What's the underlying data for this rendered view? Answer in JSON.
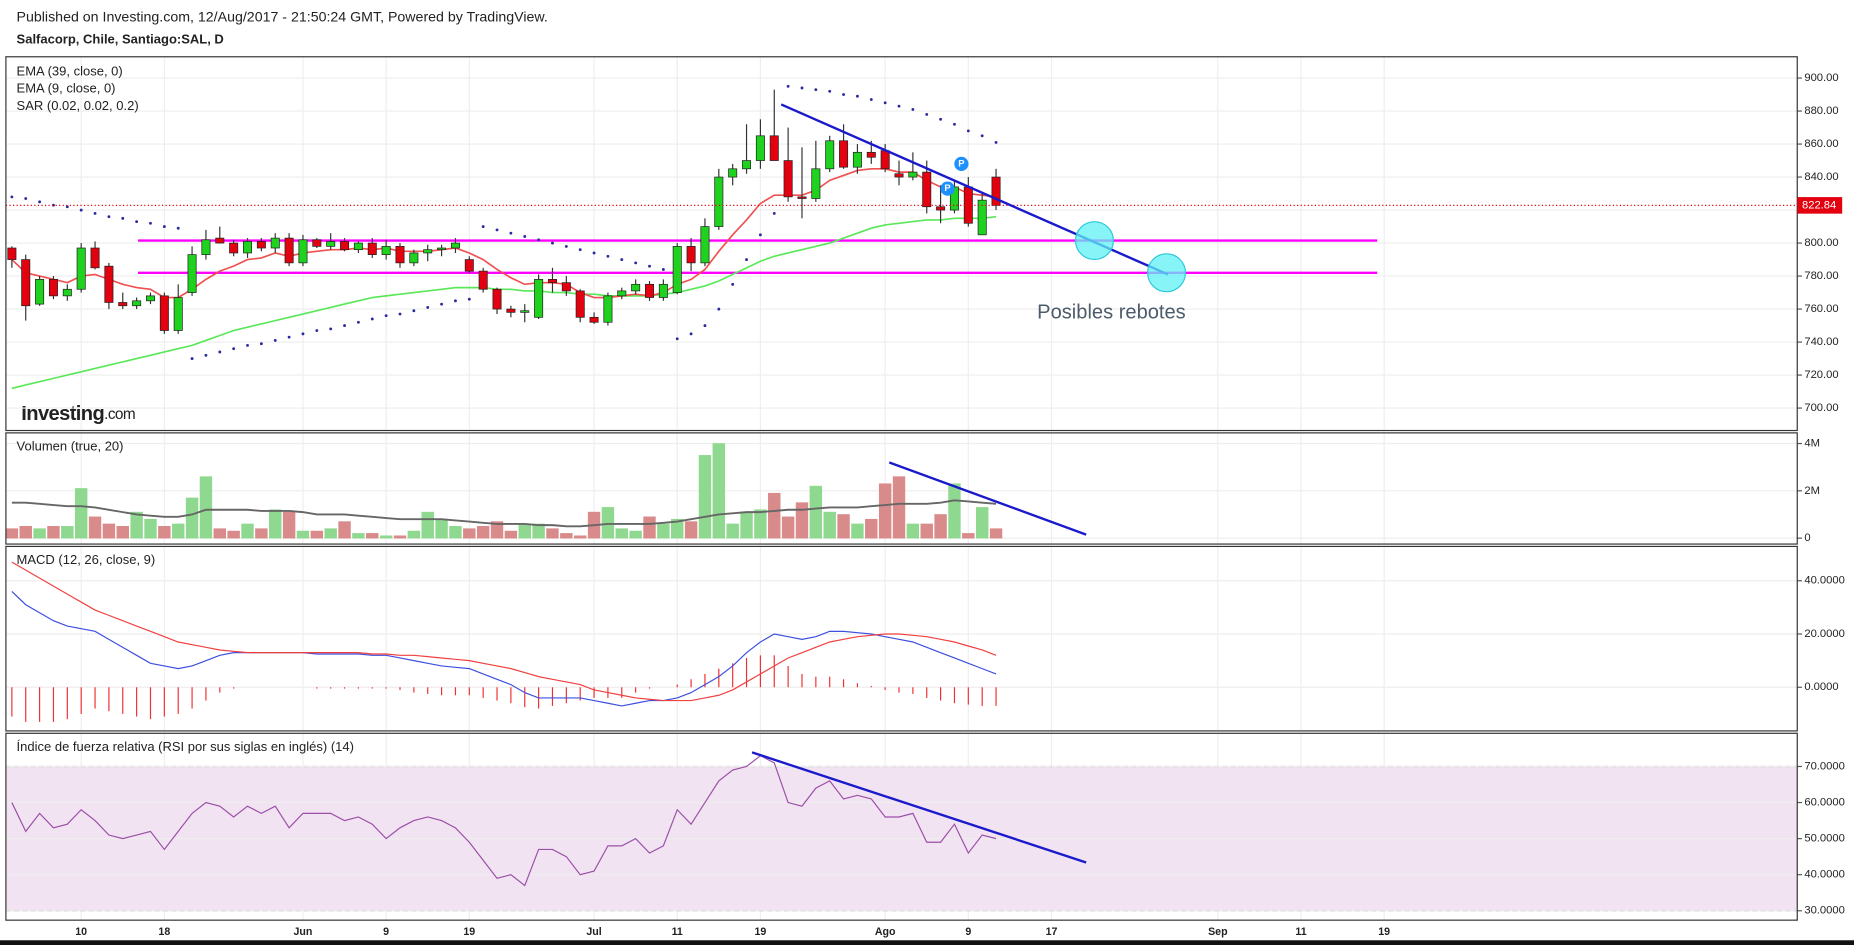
{
  "header": {
    "published": "Published on Investing.com, 12/Aug/2017 - 21:50:24 GMT, Powered by TradingView.",
    "symbol": "Salfacorp, Chile, Santiago:SAL, D",
    "logo": [
      "Investing",
      ".com"
    ]
  },
  "x_axis": {
    "xlim": [
      -0.43,
      128.8
    ],
    "xticks": [
      {
        "value": 5,
        "label": "10"
      },
      {
        "value": 11,
        "label": "18"
      },
      {
        "value": 21,
        "label": "Jun"
      },
      {
        "value": 27,
        "label": "9"
      },
      {
        "value": 33,
        "label": "19"
      },
      {
        "value": 42,
        "label": "Jul"
      },
      {
        "value": 48,
        "label": "11"
      },
      {
        "value": 54,
        "label": "19"
      },
      {
        "value": 63,
        "label": "Ago"
      },
      {
        "value": 69,
        "label": "9"
      },
      {
        "value": 75,
        "label": "17"
      },
      {
        "value": 87,
        "label": "Sep"
      },
      {
        "value": 93,
        "label": "11"
      },
      {
        "value": 99,
        "label": "19"
      }
    ]
  },
  "chart_data": [
    {
      "type": "candlestick",
      "up_color": "#1ed21e",
      "down_color": "#e3000f",
      "open": [
        797,
        790,
        763,
        778,
        768,
        772,
        797,
        786,
        764,
        762,
        765,
        768,
        747,
        770,
        793,
        803,
        800,
        794,
        801,
        797,
        803,
        788,
        802,
        798,
        801,
        796,
        800,
        793,
        798,
        788,
        794,
        796,
        797,
        790,
        783,
        772,
        760,
        758,
        755,
        778,
        776,
        771,
        755,
        752,
        768,
        771,
        775,
        767,
        770,
        798,
        788,
        810,
        840,
        845,
        850,
        865,
        850,
        828,
        827,
        845,
        862,
        846,
        855,
        856,
        842,
        840,
        843,
        822,
        820,
        834,
        805,
        840
      ],
      "high": [
        798,
        793,
        780,
        780,
        775,
        800,
        801,
        788,
        770,
        767,
        770,
        770,
        775,
        798,
        808,
        810,
        802,
        803,
        803,
        806,
        806,
        805,
        803,
        806,
        803,
        801,
        803,
        802,
        800,
        796,
        799,
        799,
        803,
        792,
        785,
        773,
        762,
        763,
        781,
        785,
        780,
        772,
        758,
        770,
        773,
        778,
        777,
        778,
        800,
        803,
        815,
        845,
        848,
        872,
        875,
        893,
        870,
        858,
        862,
        865,
        872,
        860,
        862,
        860,
        850,
        855,
        850,
        835,
        838,
        840,
        830,
        845
      ],
      "low": [
        785,
        753,
        762,
        766,
        765,
        770,
        784,
        760,
        760,
        760,
        763,
        745,
        745,
        768,
        790,
        800,
        792,
        791,
        795,
        794,
        786,
        786,
        797,
        796,
        795,
        794,
        791,
        790,
        785,
        786,
        789,
        792,
        794,
        782,
        770,
        757,
        755,
        752,
        754,
        770,
        768,
        752,
        751,
        750,
        766,
        769,
        765,
        765,
        769,
        783,
        786,
        808,
        835,
        842,
        845,
        850,
        825,
        815,
        825,
        843,
        845,
        842,
        848,
        843,
        835,
        838,
        818,
        812,
        818,
        810,
        805,
        820
      ],
      "close": [
        790,
        762,
        778,
        768,
        772,
        797,
        785,
        764,
        762,
        765,
        768,
        747,
        767,
        793,
        802,
        800,
        794,
        801,
        797,
        803,
        788,
        802,
        798,
        801,
        796,
        800,
        793,
        798,
        788,
        794,
        796,
        797,
        800,
        783,
        772,
        760,
        758,
        759,
        778,
        776,
        771,
        755,
        752,
        768,
        771,
        775,
        767,
        775,
        798,
        788,
        810,
        840,
        845,
        850,
        865,
        850,
        828,
        827,
        845,
        862,
        846,
        855,
        852,
        845,
        840,
        843,
        822,
        820,
        834,
        812,
        826,
        822.84
      ],
      "series": [
        {
          "name": "EMA (39, close, 0)",
          "color": "#5ae85a",
          "values": [
            712,
            714,
            716,
            718,
            720,
            722,
            724,
            726,
            728,
            730,
            732,
            734,
            736,
            738,
            741,
            744,
            747,
            749,
            751,
            753,
            755,
            757,
            759,
            761,
            763,
            765,
            767,
            768,
            769,
            770,
            771,
            772,
            773,
            773,
            773,
            772,
            772,
            771,
            771,
            770,
            770,
            769,
            769,
            768,
            768,
            768,
            768,
            769,
            770,
            772,
            774,
            777,
            781,
            785,
            789,
            792,
            794,
            796,
            798,
            800,
            803,
            806,
            809,
            811,
            812,
            813,
            814,
            814,
            815,
            815,
            815,
            816
          ]
        },
        {
          "name": "EMA (9, close, 0)",
          "color": "#f05050",
          "values": [
            790,
            782,
            780,
            778,
            776,
            780,
            781,
            778,
            775,
            773,
            772,
            767,
            767,
            772,
            778,
            783,
            786,
            790,
            791,
            794,
            792,
            794,
            795,
            796,
            796,
            797,
            796,
            797,
            795,
            795,
            795,
            796,
            797,
            794,
            790,
            784,
            779,
            775,
            776,
            776,
            775,
            770,
            767,
            767,
            768,
            769,
            768,
            770,
            775,
            778,
            784,
            795,
            805,
            814,
            824,
            829,
            829,
            829,
            832,
            838,
            841,
            844,
            845,
            845,
            843,
            843,
            838,
            834,
            834,
            830,
            829,
            828
          ]
        },
        {
          "name": "SAR (0.02, 0.02, 0.2)",
          "color": "#2a2aa0",
          "style": "dots",
          "values": [
            828,
            827,
            825,
            823,
            822,
            820,
            818,
            816,
            815,
            813,
            812,
            810,
            809,
            730,
            732,
            734,
            736,
            738,
            739,
            741,
            743,
            745,
            747,
            748,
            750,
            752,
            754,
            756,
            757,
            759,
            761,
            763,
            765,
            766,
            810,
            808,
            806,
            804,
            802,
            800,
            798,
            796,
            794,
            792,
            790,
            788,
            786,
            784,
            742,
            745,
            750,
            760,
            775,
            790,
            805,
            818,
            895,
            894,
            893,
            892,
            890,
            889,
            887,
            885,
            883,
            881,
            878,
            875,
            872,
            868,
            865,
            861
          ]
        }
      ],
      "ylim": [
        686.4,
        912.9
      ],
      "yticks": [
        {
          "value": 700,
          "label": "700.00"
        },
        {
          "value": 720,
          "label": "720.00"
        },
        {
          "value": 740,
          "label": "740.00"
        },
        {
          "value": 760,
          "label": "760.00"
        },
        {
          "value": 780,
          "label": "780.00"
        },
        {
          "value": 800,
          "label": "800.00"
        },
        {
          "value": 820,
          "label": "820.00"
        },
        {
          "value": 840,
          "label": "840.00"
        },
        {
          "value": 860,
          "label": "860.00"
        },
        {
          "value": 880,
          "label": "880.00"
        },
        {
          "value": 900,
          "label": "900.00"
        }
      ],
      "last_price": 822.84,
      "last_price_color": "#e3000f",
      "hlines": [
        {
          "value": 801.5,
          "x": [
            9.1,
            98.5
          ],
          "color": "#ff00ff"
        },
        {
          "value": 782,
          "x": [
            9.1,
            98.5
          ],
          "color": "#ff00ff"
        }
      ],
      "trendlines": [
        {
          "x": [
            55.5,
            83.4
          ],
          "y": [
            884,
            781
          ],
          "color": "#1a1acc"
        }
      ],
      "circles": [
        {
          "x": 78.1,
          "y": 801.5
        },
        {
          "x": 83.3,
          "y": 782
        }
      ],
      "events": [
        {
          "label": "P",
          "x": 68.5,
          "y": 848
        },
        {
          "label": "P",
          "x": 67.5,
          "y": 833
        }
      ],
      "annotation": "Posibles rebotes"
    },
    {
      "type": "bar",
      "title": "Volumen (true, 20)",
      "up_color": "#8fd88f",
      "down_color": "#d98a8a",
      "values": [
        400000,
        500000,
        400000,
        500000,
        500000,
        2100000,
        900000,
        600000,
        500000,
        1100000,
        800000,
        500000,
        600000,
        1700000,
        2600000,
        400000,
        300000,
        600000,
        400000,
        1200000,
        1100000,
        300000,
        300000,
        400000,
        700000,
        200000,
        200000,
        100000,
        100000,
        300000,
        1100000,
        800000,
        500000,
        400000,
        500000,
        700000,
        300000,
        600000,
        600000,
        400000,
        200000,
        100000,
        1100000,
        1300000,
        400000,
        300000,
        900000,
        600000,
        800000,
        700000,
        3500000,
        4000000,
        600000,
        1100000,
        1200000,
        1900000,
        900000,
        1500000,
        2200000,
        1100000,
        1000000,
        600000,
        800000,
        2300000,
        2600000,
        600000,
        600000,
        1000000,
        2300000,
        200000,
        1300000,
        400000
      ],
      "ma": [
        1500000,
        1500000,
        1450000,
        1400000,
        1350000,
        1350000,
        1300000,
        1200000,
        1100000,
        1000000,
        950000,
        900000,
        900000,
        1000000,
        1200000,
        1200000,
        1200000,
        1200000,
        1150000,
        1150000,
        1150000,
        1100000,
        1000000,
        1000000,
        1000000,
        950000,
        900000,
        850000,
        800000,
        800000,
        800000,
        800000,
        750000,
        700000,
        650000,
        600000,
        600000,
        600000,
        550000,
        550000,
        500000,
        500000,
        550000,
        600000,
        600000,
        600000,
        600000,
        650000,
        700000,
        800000,
        900000,
        1000000,
        1050000,
        1100000,
        1100000,
        1150000,
        1200000,
        1200000,
        1250000,
        1300000,
        1300000,
        1300000,
        1350000,
        1400000,
        1450000,
        1450000,
        1450000,
        1500000,
        1600000,
        1550000,
        1500000,
        1450000
      ],
      "ma_color": "#666666",
      "ylim": [
        -250000,
        4450000
      ],
      "yticks": [
        0,
        {
          "value": 2000000,
          "label": "2M"
        },
        {
          "value": 4000000,
          "label": "4M"
        }
      ],
      "trendlines": [
        {
          "x": [
            63.3,
            77.5
          ],
          "y": [
            3200000,
            150000
          ],
          "color": "#1a1acc"
        }
      ]
    },
    {
      "type": "line",
      "title": "MACD (12, 26, close, 9)",
      "series": [
        {
          "color": "#3d4fe0",
          "values": [
            36,
            31,
            28,
            25,
            23,
            22,
            21,
            18,
            15,
            12,
            9,
            8,
            7,
            8,
            10,
            12,
            13,
            13,
            13,
            13,
            13,
            13,
            12.5,
            12.5,
            12.5,
            12.5,
            12,
            12,
            11,
            10,
            9,
            8,
            7.5,
            7,
            5,
            3,
            1,
            -2,
            -4,
            -4,
            -4,
            -4,
            -5,
            -6,
            -7,
            -6,
            -5,
            -5,
            -4,
            -2,
            1,
            4,
            8,
            13,
            17,
            20,
            19,
            18,
            19,
            21,
            21,
            20.5,
            20,
            19,
            18,
            17,
            15,
            13,
            11,
            9,
            7,
            5
          ]
        },
        {
          "color": "#f04040",
          "values": [
            47,
            44,
            41,
            38,
            35,
            32,
            29,
            27,
            25,
            23,
            21,
            19,
            17,
            16,
            15,
            14,
            13.5,
            13,
            13,
            13,
            13,
            13,
            13,
            13,
            13,
            13,
            12.5,
            12.5,
            12,
            12,
            11.5,
            11,
            10.5,
            10,
            9,
            8,
            7,
            5.5,
            4,
            3,
            2,
            1,
            -1,
            -2,
            -3,
            -4,
            -4.5,
            -5,
            -5,
            -5,
            -4,
            -3,
            -1,
            2,
            5,
            8,
            11,
            13,
            15,
            17,
            18,
            19,
            19.5,
            20,
            20,
            19.5,
            19,
            18,
            17,
            15.5,
            14,
            12
          ]
        }
      ],
      "histogram": {
        "color": "#f03030",
        "values": [
          -11,
          -13,
          -13,
          -13,
          -12,
          -10,
          -8,
          -9,
          -10,
          -11,
          -12,
          -11,
          -10,
          -8,
          -5,
          -2,
          -0.5,
          0,
          0,
          0,
          0,
          0,
          -0.5,
          -0.5,
          -0.5,
          -0.5,
          -0.5,
          -0.5,
          -1,
          -2,
          -2.5,
          -3,
          -3,
          -3,
          -4,
          -5,
          -6,
          -7.5,
          -8,
          -7,
          -6,
          -5,
          -4,
          -4,
          -4,
          -2,
          -0.5,
          0,
          1,
          3,
          5,
          7,
          9,
          11,
          12,
          12,
          8,
          5,
          4,
          4,
          3,
          1.5,
          0.5,
          -1,
          -2,
          -2.5,
          -4,
          -5,
          -6,
          -6.5,
          -7,
          -7
        ]
      },
      "ylim": [
        -16.4,
        52.9
      ],
      "yticks": [
        {
          "value": 0,
          "label": "0.0000"
        },
        {
          "value": 20,
          "label": "20.0000"
        },
        {
          "value": 40,
          "label": "40.0000"
        }
      ]
    },
    {
      "type": "line",
      "title": "Índice de fuerza relativa (RSI por sus siglas en inglés) (14)",
      "color": "#9b4fa8",
      "band": [
        30,
        70
      ],
      "band_color": "#f1e3f1",
      "values": [
        60,
        52,
        57,
        53,
        54,
        58,
        55,
        51,
        50,
        51,
        52,
        47,
        52,
        57,
        60,
        59,
        56,
        59,
        57,
        59,
        53,
        57,
        57,
        57,
        55,
        56,
        54,
        50,
        53,
        55,
        56,
        55,
        53,
        49,
        44,
        39,
        40,
        37,
        47,
        47,
        45,
        40,
        41,
        48,
        48,
        50,
        46,
        48,
        58,
        54,
        60,
        66,
        69,
        70,
        73,
        71,
        60,
        59,
        64,
        66,
        61,
        62,
        61,
        56,
        56,
        57,
        49,
        49,
        54,
        46,
        51,
        50
      ],
      "ylim": [
        27.4,
        79.2
      ],
      "yticks": [
        {
          "value": 30,
          "label": "30.0000"
        },
        {
          "value": 40,
          "label": "40.0000"
        },
        {
          "value": 50,
          "label": "50.0000"
        },
        {
          "value": 60,
          "label": "60.0000"
        },
        {
          "value": 70,
          "label": "70.0000"
        }
      ],
      "trendlines": [
        {
          "x": [
            53.4,
            77.5
          ],
          "y": [
            73.9,
            43.4
          ],
          "color": "#1a1acc"
        }
      ]
    }
  ]
}
